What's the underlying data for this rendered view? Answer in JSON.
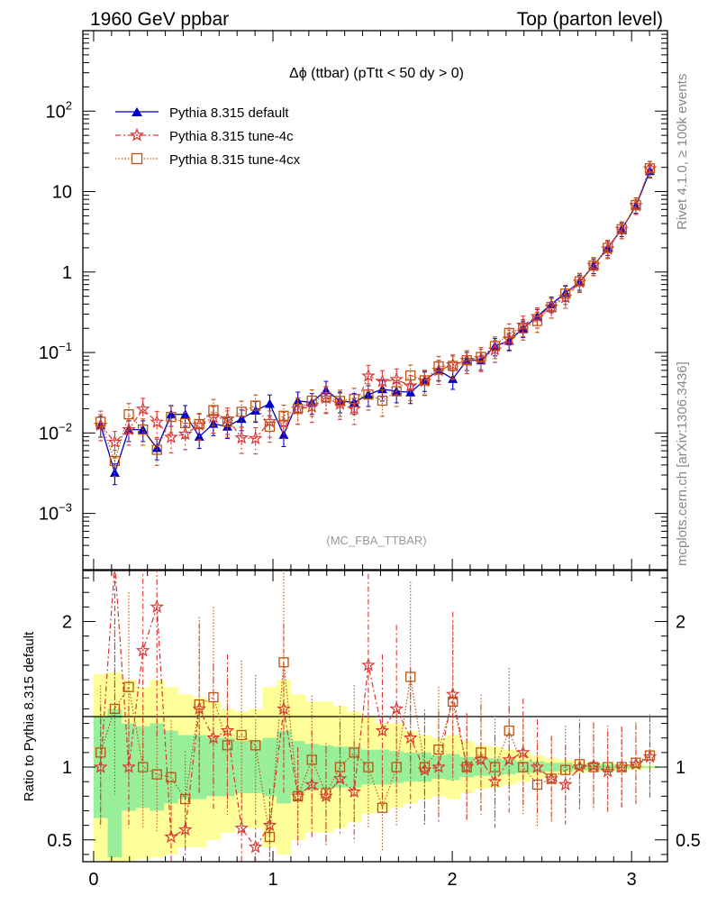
{
  "header": {
    "left_title": "1960 GeV ppbar",
    "right_title": "Top (parton level)"
  },
  "side_labels": {
    "rivet": "Rivet 4.1.0, ≥ 100k events",
    "mcplots": "mcplots.cern.ch [arXiv:1306.3436]"
  },
  "chart_data": {
    "type": "scatter",
    "title": "Δϕ (ttbar) (pTtt < 50 dy > 0)",
    "watermark": "(MC_FBA_TTBAR)",
    "xlabel": "",
    "ylabel_main": "",
    "ylabel_ratio": "Ratio to Pythia 8.315 default",
    "xlim": [
      -0.06,
      3.2
    ],
    "ylim_main_log": [
      0.0002,
      1000
    ],
    "ylim_ratio": [
      0.35,
      2.35
    ],
    "x_ticks": [
      "0",
      "1",
      "2",
      "3"
    ],
    "y_ticks_main": [
      "10^-3",
      "10^-2",
      "10^-1",
      "1",
      "10",
      "10^2"
    ],
    "y_ticks_ratio": [
      "0.5",
      "1",
      "2"
    ],
    "legend_position": "top-left",
    "series": [
      {
        "name": "Pythia 8.315 default",
        "color": "#0000cc",
        "marker": "triangle",
        "x": [
          0.039,
          0.118,
          0.196,
          0.275,
          0.353,
          0.432,
          0.511,
          0.589,
          0.668,
          0.746,
          0.825,
          0.903,
          0.982,
          1.06,
          1.139,
          1.217,
          1.296,
          1.374,
          1.453,
          1.532,
          1.61,
          1.689,
          1.767,
          1.846,
          1.924,
          2.003,
          2.081,
          2.16,
          2.238,
          2.317,
          2.395,
          2.474,
          2.553,
          2.631,
          2.71,
          2.788,
          2.867,
          2.945,
          3.024,
          3.102
        ],
        "values": [
          0.0125,
          0.0032,
          0.011,
          0.011,
          0.0065,
          0.017,
          0.017,
          0.009,
          0.013,
          0.012,
          0.015,
          0.019,
          0.023,
          0.0095,
          0.025,
          0.024,
          0.034,
          0.025,
          0.024,
          0.03,
          0.035,
          0.033,
          0.032,
          0.045,
          0.06,
          0.047,
          0.08,
          0.08,
          0.12,
          0.14,
          0.2,
          0.28,
          0.4,
          0.55,
          0.75,
          1.2,
          2.0,
          3.4,
          6.6,
          18.0
        ]
      },
      {
        "name": "Pythia 8.315 tune-4c",
        "color": "#dd3333",
        "marker": "star",
        "ratio": [
          1.0,
          2.4,
          1.0,
          1.8,
          2.1,
          0.52,
          0.57,
          1.4,
          1.2,
          1.25,
          0.58,
          0.45,
          0.6,
          1.4,
          0.8,
          0.88,
          0.8,
          0.92,
          0.83,
          1.7,
          1.25,
          1.4,
          1.2,
          0.98,
          1.0,
          1.5,
          1.0,
          1.05,
          0.9,
          1.05,
          1.1,
          1.0,
          0.92,
          0.88,
          1.0,
          1.01,
          0.97,
          1.0,
          1.02,
          1.07
        ]
      },
      {
        "name": "Pythia 8.315 tune-4cx",
        "color": "#bb5511",
        "marker": "open-square",
        "ratio": [
          1.1,
          1.4,
          1.55,
          1.0,
          0.95,
          0.93,
          0.78,
          1.43,
          1.48,
          1.15,
          1.22,
          1.15,
          0.52,
          1.72,
          0.8,
          1.05,
          0.82,
          1.0,
          1.1,
          1.0,
          0.72,
          1.0,
          1.62,
          1.0,
          1.12,
          1.45,
          1.0,
          1.1,
          1.0,
          1.25,
          1.0,
          0.88,
          0.92,
          0.98,
          1.02,
          1.0,
          1.0,
          1.0,
          1.03,
          1.08
        ]
      }
    ],
    "ratio_band_yellow": {
      "lower": [
        0.36,
        0.35,
        0.35,
        0.37,
        0.38,
        0.4,
        0.45,
        0.45,
        0.5,
        0.55,
        0.6,
        0.58,
        0.45,
        0.4,
        0.5,
        0.55,
        0.55,
        0.58,
        0.62,
        0.68,
        0.7,
        0.72,
        0.75,
        0.78,
        0.8,
        0.78,
        0.82,
        0.85,
        0.86,
        0.88,
        0.9,
        0.92,
        0.94,
        0.95,
        0.96,
        0.97,
        0.97,
        0.98,
        0.98,
        0.99
      ],
      "upper": [
        1.64,
        1.65,
        1.6,
        1.55,
        1.6,
        1.55,
        1.5,
        1.48,
        1.45,
        1.4,
        1.38,
        1.4,
        1.55,
        1.6,
        1.5,
        1.45,
        1.45,
        1.42,
        1.38,
        1.35,
        1.3,
        1.3,
        1.25,
        1.22,
        1.2,
        1.22,
        1.18,
        1.15,
        1.14,
        1.12,
        1.1,
        1.08,
        1.06,
        1.05,
        1.04,
        1.03,
        1.03,
        1.02,
        1.02,
        1.01
      ]
    },
    "ratio_band_green": {
      "lower": [
        0.65,
        0.38,
        0.7,
        0.72,
        0.7,
        0.75,
        0.78,
        0.78,
        0.8,
        0.8,
        0.82,
        0.82,
        0.8,
        0.75,
        0.82,
        0.84,
        0.85,
        0.86,
        0.86,
        0.88,
        0.88,
        0.89,
        0.9,
        0.9,
        0.92,
        0.91,
        0.93,
        0.94,
        0.94,
        0.95,
        0.96,
        0.96,
        0.97,
        0.97,
        0.98,
        0.98,
        0.98,
        0.99,
        0.99,
        0.995
      ],
      "upper": [
        1.35,
        1.4,
        1.3,
        1.28,
        1.3,
        1.25,
        1.22,
        1.22,
        1.2,
        1.2,
        1.18,
        1.18,
        1.2,
        1.25,
        1.18,
        1.16,
        1.15,
        1.14,
        1.14,
        1.12,
        1.12,
        1.11,
        1.1,
        1.1,
        1.08,
        1.09,
        1.07,
        1.06,
        1.06,
        1.05,
        1.04,
        1.04,
        1.03,
        1.03,
        1.02,
        1.02,
        1.02,
        1.01,
        1.01,
        1.005
      ]
    }
  }
}
